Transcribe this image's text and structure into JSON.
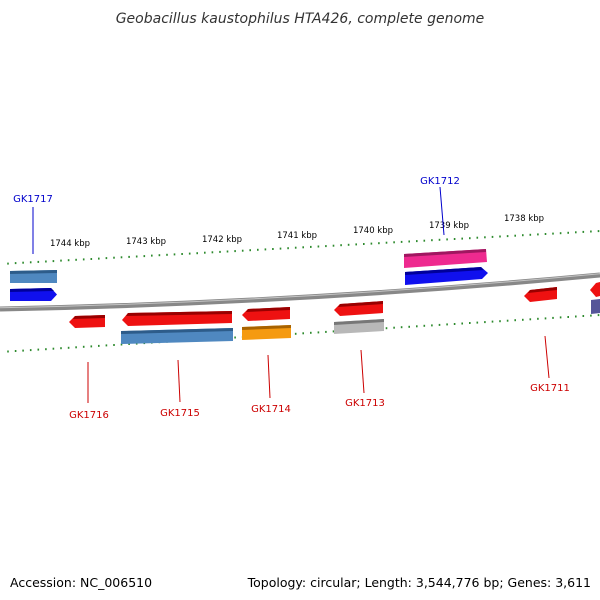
{
  "title": "Geobacillus kaustophilus HTA426, complete genome",
  "scale_labels": [
    "1744 kbp",
    "1743 kbp",
    "1742 kbp",
    "1741 kbp",
    "1740 kbp",
    "1739 kbp",
    "1738 kbp"
  ],
  "genes": [
    {
      "name": "GK1717",
      "color": "#0000cc"
    },
    {
      "name": "GK1712",
      "color": "#0000cc"
    },
    {
      "name": "GK1716",
      "color": "#cc0000"
    },
    {
      "name": "GK1715",
      "color": "#cc0000"
    },
    {
      "name": "GK1714",
      "color": "#cc0000"
    },
    {
      "name": "GK1713",
      "color": "#cc0000"
    },
    {
      "name": "GK1711",
      "color": "#cc0000"
    }
  ],
  "feature_colors": {
    "red": "#ee1111",
    "blue": "#1010ee",
    "steelblue": "#4f88c0",
    "pink": "#ee2a8f",
    "orange": "#f59a10",
    "gray": "#b8b8b8",
    "purple": "#555599",
    "ticks": "#2d8a2d",
    "backbone": "#808080"
  },
  "footer": {
    "accession": "Accession: NC_006510",
    "topology": "Topology: circular; Length: 3,544,776 bp; Genes: 3,611"
  }
}
